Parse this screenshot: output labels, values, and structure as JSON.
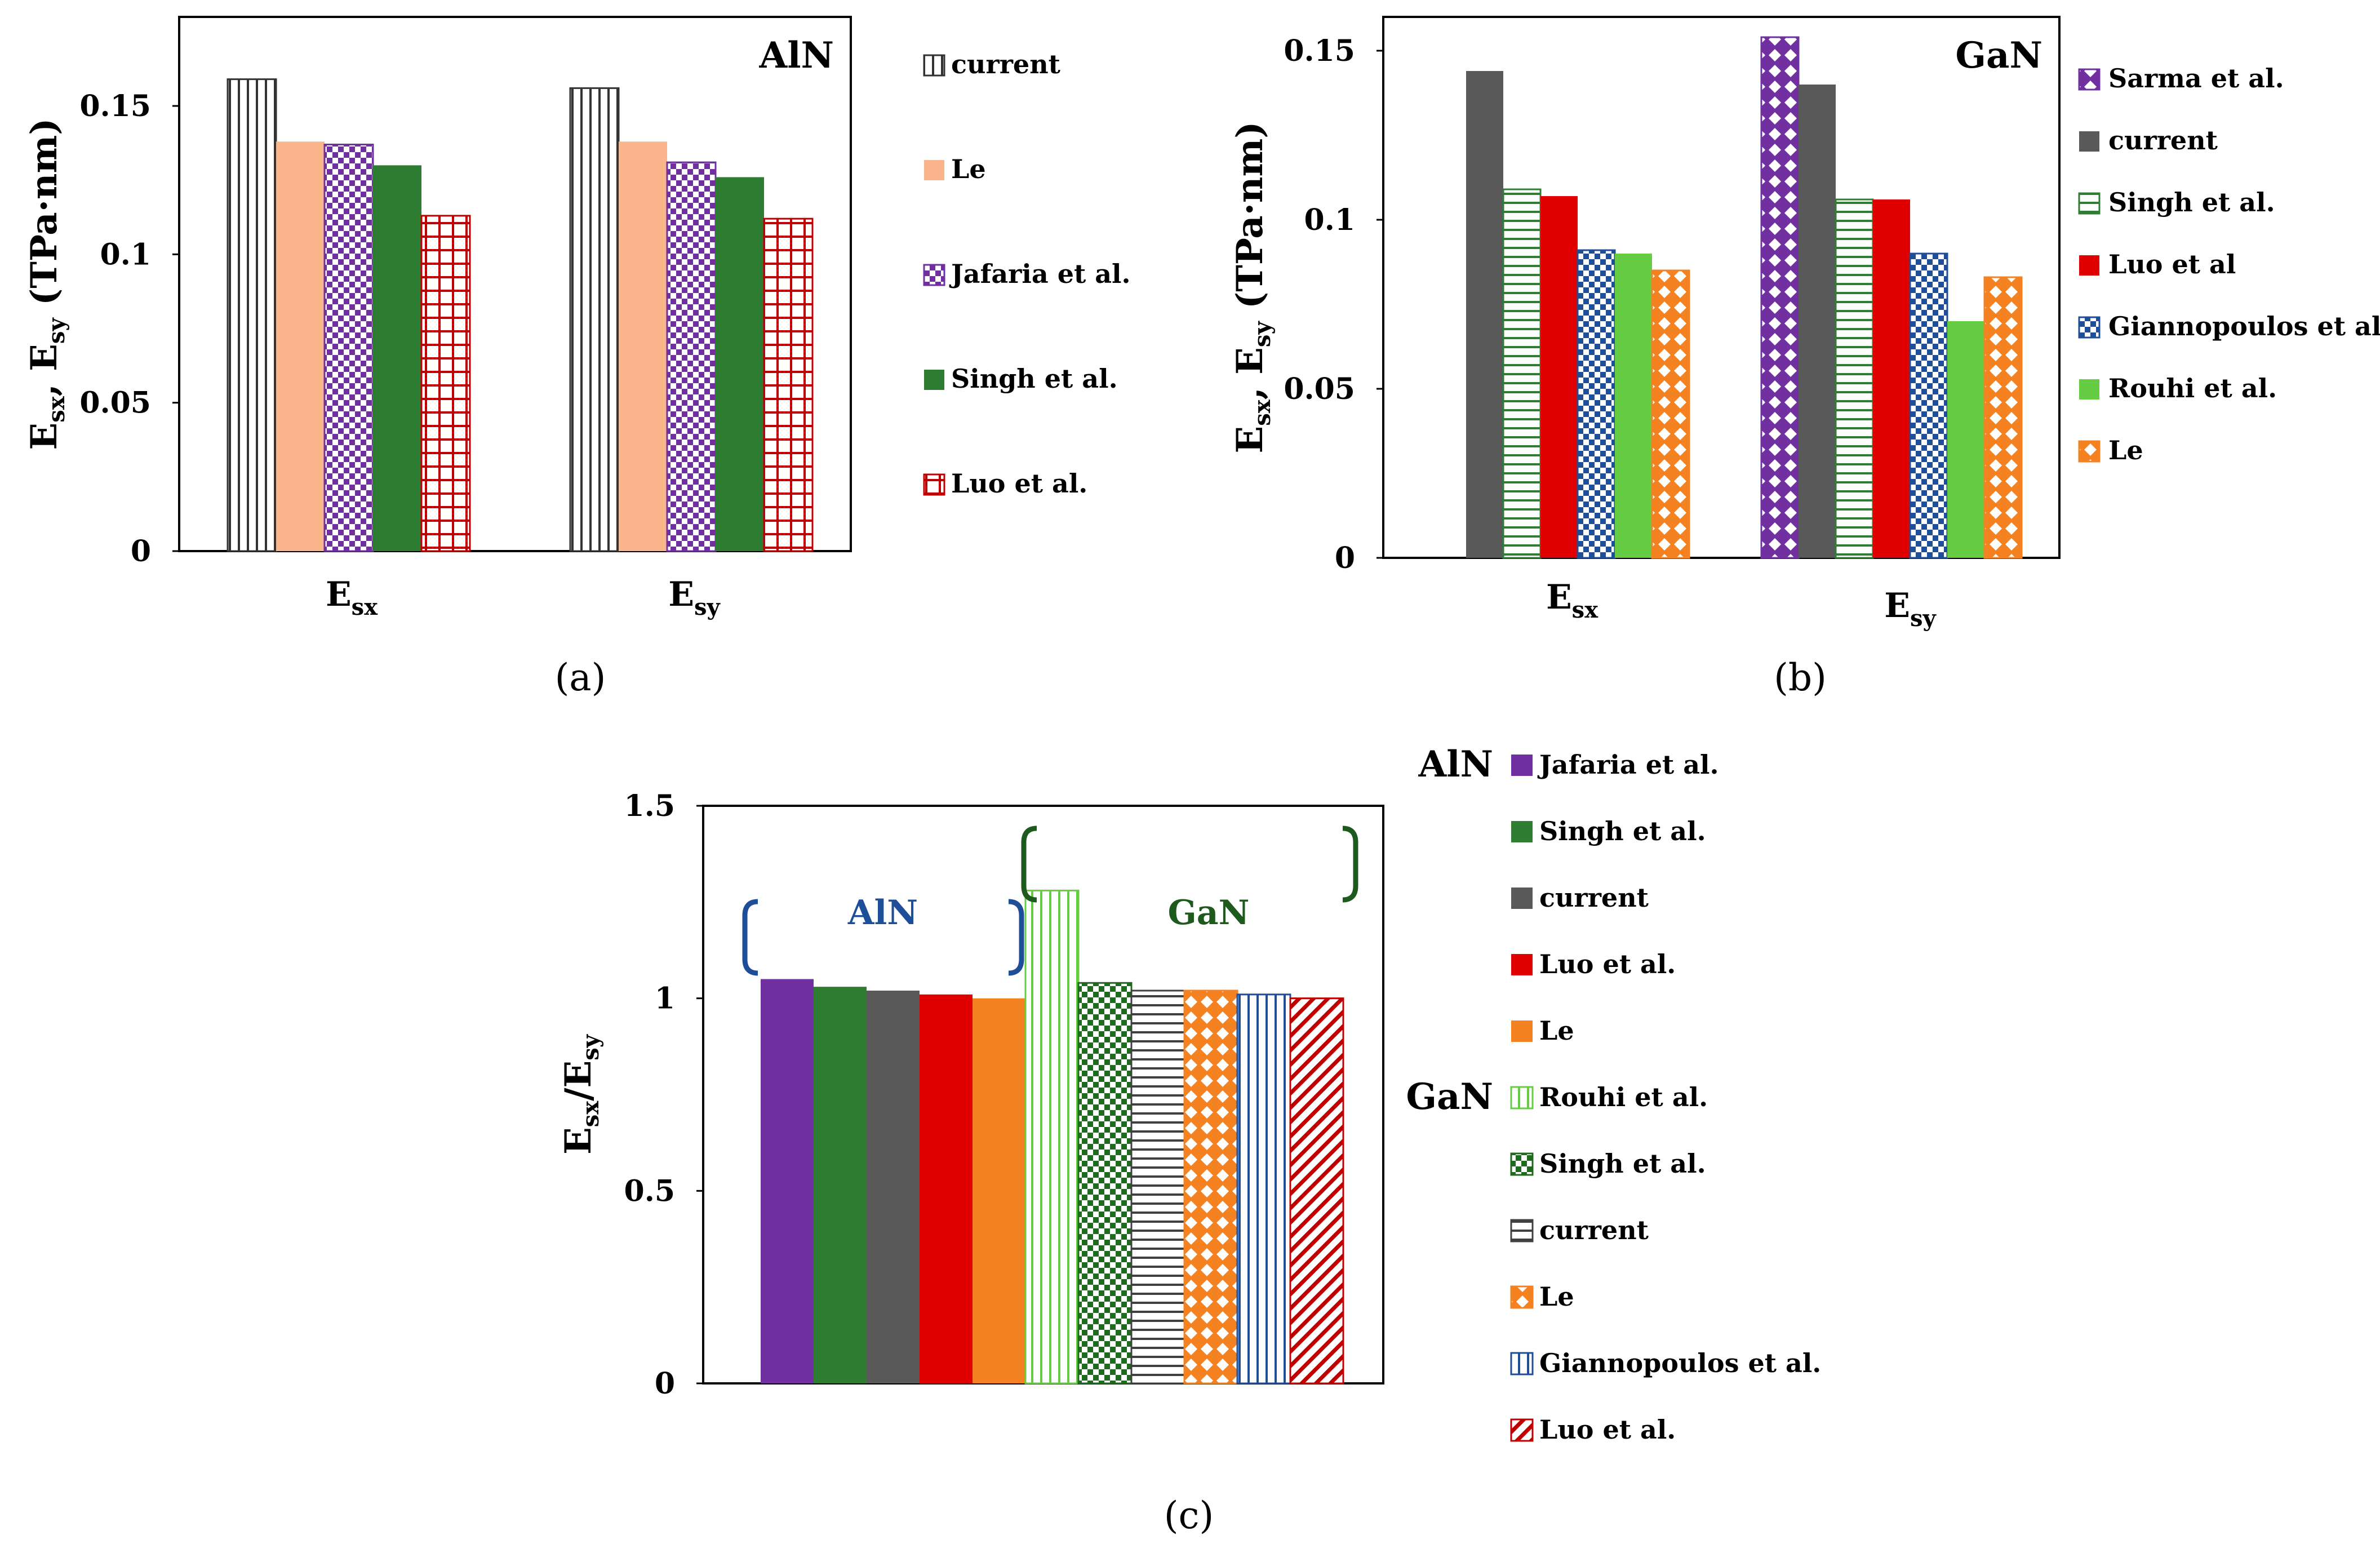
{
  "chart_data": [
    {
      "panel": "a",
      "type": "bar",
      "title": "AlN",
      "panel_label": "(a)",
      "categories": [
        {
          "main": "E",
          "sub": "sx"
        },
        {
          "main": "E",
          "sub": "sy"
        }
      ],
      "ylabel": {
        "p1": "E",
        "s1": "sx",
        "p2": ", E",
        "s2": "sy",
        "p3": "  (TPa·nm)"
      },
      "yticks": [
        "0",
        "0.05",
        "0.1",
        "0.15"
      ],
      "ylim": [
        0,
        0.18
      ],
      "legend_position": "right",
      "series": [
        {
          "name": "current",
          "values": [
            0.159,
            0.156
          ],
          "color": "#333333",
          "pattern": "vlines"
        },
        {
          "name": "Le",
          "values": [
            0.138,
            0.138
          ],
          "color": "#fbb58d",
          "pattern": "solid"
        },
        {
          "name": "Jafaria et al.",
          "values": [
            0.137,
            0.131
          ],
          "color": "#7030a0",
          "pattern": "checker"
        },
        {
          "name": "Singh et al.",
          "values": [
            0.13,
            0.126
          ],
          "color": "#2e7d32",
          "pattern": "solid"
        },
        {
          "name": "Luo et al.",
          "values": [
            0.113,
            0.112
          ],
          "color": "#c00000",
          "pattern": "grid"
        }
      ]
    },
    {
      "panel": "b",
      "type": "bar",
      "title": "GaN",
      "panel_label": "(b)",
      "categories": [
        {
          "main": "E",
          "sub": "sx"
        },
        {
          "main": "E",
          "sub": "sy"
        }
      ],
      "ylabel": {
        "p1": "E",
        "s1": "sx",
        "p2": ", E",
        "s2": "sy",
        "p3": "  (TPa·nm)"
      },
      "yticks": [
        "0",
        "0.05",
        "0.1",
        "0.15"
      ],
      "ylim": [
        0,
        0.16
      ],
      "legend_position": "right",
      "series": [
        {
          "name": "Sarma et al.",
          "values": [
            null,
            0.154
          ],
          "color": "#7030a0",
          "pattern": "diamond"
        },
        {
          "name": "current",
          "values": [
            0.144,
            0.14
          ],
          "color": "#595959",
          "pattern": "solid"
        },
        {
          "name": "Singh et al.",
          "values": [
            0.109,
            0.106
          ],
          "color": "#2e7d32",
          "pattern": "hlines"
        },
        {
          "name": "Luo et al",
          "values": [
            0.107,
            0.106
          ],
          "color": "#e00000",
          "pattern": "solid"
        },
        {
          "name": "Giannopoulos et al.",
          "values": [
            0.091,
            0.09
          ],
          "color": "#1f4e99",
          "pattern": "checker"
        },
        {
          "name": "Rouhi et al.",
          "values": [
            0.09,
            0.07
          ],
          "color": "#66cc44",
          "pattern": "solid"
        },
        {
          "name": "Le",
          "values": [
            0.085,
            0.083
          ],
          "color": "#f58220",
          "pattern": "diamond"
        }
      ]
    },
    {
      "panel": "c",
      "type": "bar",
      "title": "",
      "panel_label": "(c)",
      "ylabel": {
        "p1": "E",
        "s1": "sx",
        "p2": "/E",
        "s2": "sy",
        "p3": ""
      },
      "yticks": [
        "0",
        "0.5",
        "1",
        "1.5"
      ],
      "ylim": [
        0,
        1.5
      ],
      "legend_position": "right",
      "groups": [
        {
          "name": "AlN",
          "color": "#1f4e99"
        },
        {
          "name": "GaN",
          "color": "#1e5a1e"
        }
      ],
      "series": [
        {
          "name": "Jafaria et al.",
          "group": "AlN",
          "value": 1.05,
          "color": "#7030a0",
          "pattern": "solid"
        },
        {
          "name": "Singh et al.",
          "group": "AlN",
          "value": 1.03,
          "color": "#2e7d32",
          "pattern": "solid"
        },
        {
          "name": "current",
          "group": "AlN",
          "value": 1.02,
          "color": "#595959",
          "pattern": "solid"
        },
        {
          "name": "Luo et al.",
          "group": "AlN",
          "value": 1.01,
          "color": "#e00000",
          "pattern": "solid"
        },
        {
          "name": "Le",
          "group": "AlN",
          "value": 1.0,
          "color": "#f58220",
          "pattern": "solid"
        },
        {
          "name": "Rouhi et al.",
          "group": "GaN",
          "value": 1.28,
          "color": "#66cc44",
          "pattern": "vlines"
        },
        {
          "name": "Singh et al.",
          "group": "GaN",
          "value": 1.04,
          "color": "#1e6b1e",
          "pattern": "checker"
        },
        {
          "name": "current",
          "group": "GaN",
          "value": 1.02,
          "color": "#404040",
          "pattern": "hlines"
        },
        {
          "name": "Le",
          "group": "GaN",
          "value": 1.02,
          "color": "#f58220",
          "pattern": "diamond"
        },
        {
          "name": "Giannopoulos et al.",
          "group": "GaN",
          "value": 1.01,
          "color": "#1f4e99",
          "pattern": "vlines"
        },
        {
          "name": "Luo et al.",
          "group": "GaN",
          "value": 1.0,
          "color": "#c00000",
          "pattern": "diag"
        }
      ]
    }
  ]
}
